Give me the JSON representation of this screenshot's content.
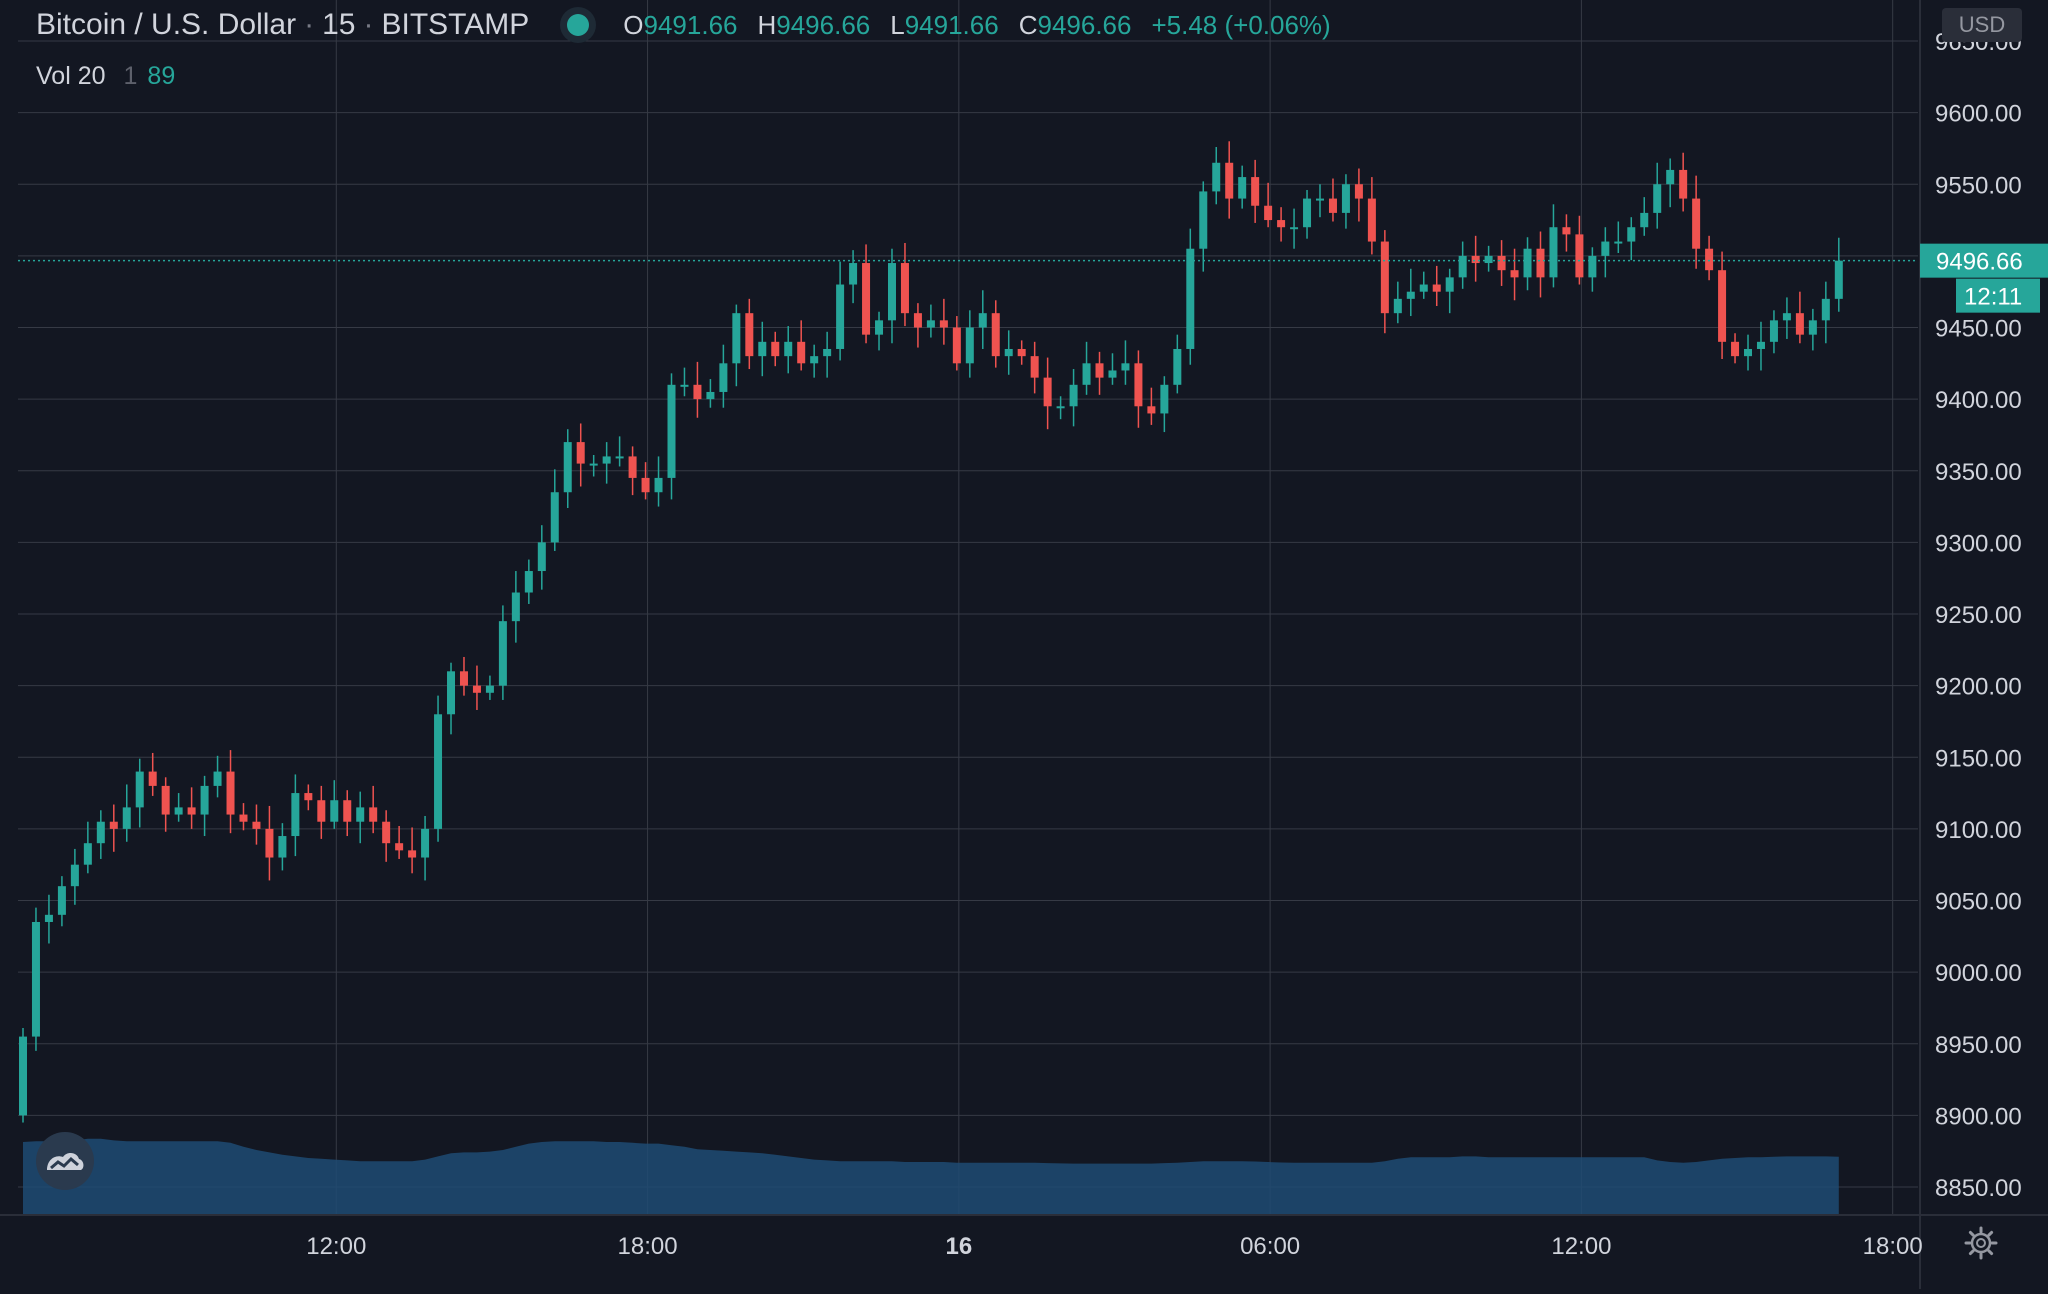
{
  "header": {
    "symbol": "Bitcoin / U.S. Dollar",
    "interval": "15",
    "exchange": "BITSTAMP",
    "ohlc": {
      "o_label": "O",
      "o_value": "9491.66",
      "h_label": "H",
      "h_value": "9496.66",
      "l_label": "L",
      "l_value": "9491.66",
      "c_label": "C",
      "c_value": "9496.66",
      "change": "+5.48 (+0.06%)"
    }
  },
  "volume_legend": {
    "label": "Vol 20",
    "param": "1",
    "value": "89"
  },
  "currency_button": "USD",
  "price_axis": {
    "current_price_label": "9496.66",
    "countdown_label": "12:11"
  },
  "icons": {
    "logo": "tradingview-logo-icon",
    "settings": "gear-icon",
    "status": "market-status-dot-icon"
  },
  "colors": {
    "background": "#131722",
    "up": "#26a69a",
    "down": "#ef5350",
    "grid": "#363a45",
    "volume_ma": "#1e4b73"
  },
  "chart_data": {
    "type": "candlestick",
    "title": "Bitcoin / U.S. Dollar",
    "interval": "15",
    "ylim": [
      8825,
      9660
    ],
    "y_ticks": [
      8850,
      8900,
      8950,
      9000,
      9050,
      9100,
      9150,
      9200,
      9250,
      9300,
      9350,
      9400,
      9450,
      9500,
      9550,
      9600,
      9650
    ],
    "y_tick_labels": [
      "8850.00",
      "8900.00",
      "8950.00",
      "9000.00",
      "9050.00",
      "9100.00",
      "9150.00",
      "9200.00",
      "9250.00",
      "9300.00",
      "9350.00",
      "9400.00",
      "9450.00",
      "9500.00",
      "9550.00",
      "9600.00",
      "9650.00"
    ],
    "x_ticks": [
      {
        "label": "12:00",
        "bar": 25,
        "bold": false
      },
      {
        "label": "18:00",
        "bar": 49,
        "bold": false
      },
      {
        "label": "16",
        "bar": 73,
        "bold": true
      },
      {
        "label": "06:00",
        "bar": 97,
        "bold": false
      },
      {
        "label": "12:00",
        "bar": 121,
        "bold": false
      },
      {
        "label": "18:00",
        "bar": 145,
        "bold": false
      }
    ],
    "grid": true,
    "current_price": 9496.66,
    "bar_count": 141,
    "closes": [
      8955,
      9035,
      9040,
      9060,
      9075,
      9090,
      9105,
      9100,
      9115,
      9140,
      9130,
      9110,
      9115,
      9110,
      9130,
      9140,
      9110,
      9105,
      9100,
      9080,
      9095,
      9125,
      9120,
      9105,
      9120,
      9105,
      9115,
      9105,
      9090,
      9085,
      9080,
      9100,
      9180,
      9210,
      9200,
      9195,
      9200,
      9245,
      9265,
      9280,
      9300,
      9335,
      9370,
      9355,
      9355,
      9360,
      9360,
      9345,
      9335,
      9345,
      9410,
      9410,
      9400,
      9405,
      9425,
      9460,
      9430,
      9440,
      9430,
      9440,
      9425,
      9430,
      9435,
      9480,
      9495,
      9445,
      9455,
      9495,
      9460,
      9450,
      9455,
      9450,
      9425,
      9450,
      9460,
      9430,
      9435,
      9430,
      9415,
      9395,
      9395,
      9410,
      9425,
      9415,
      9420,
      9425,
      9395,
      9390,
      9410,
      9435,
      9505,
      9545,
      9565,
      9540,
      9555,
      9535,
      9525,
      9520,
      9520,
      9540,
      9540,
      9530,
      9550,
      9540,
      9510,
      9460,
      9470,
      9475,
      9480,
      9475,
      9485,
      9500,
      9495,
      9500,
      9490,
      9485,
      9505,
      9485,
      9520,
      9515,
      9485,
      9500,
      9510,
      9510,
      9520,
      9530,
      9550,
      9560,
      9540,
      9505,
      9490,
      9440,
      9430,
      9435,
      9440,
      9455,
      9460,
      9445,
      9455,
      9470,
      9496.66
    ],
    "volume": {
      "indicator": "Vol 20",
      "length": 1,
      "last_value": 89,
      "ma_line": [
        450,
        455,
        455,
        455,
        460,
        470,
        470,
        460,
        455,
        455,
        455,
        455,
        455,
        455,
        455,
        455,
        445,
        420,
        400,
        385,
        370,
        360,
        350,
        345,
        340,
        335,
        330,
        330,
        330,
        330,
        330,
        340,
        360,
        380,
        385,
        385,
        390,
        400,
        420,
        440,
        450,
        455,
        455,
        455,
        455,
        450,
        450,
        445,
        440,
        440,
        430,
        420,
        405,
        400,
        395,
        390,
        385,
        380,
        370,
        360,
        350,
        340,
        335,
        330,
        330,
        330,
        330,
        330,
        325,
        325,
        325,
        325,
        320,
        320,
        320,
        320,
        320,
        320,
        320,
        318,
        316,
        315,
        315,
        315,
        315,
        315,
        315,
        315,
        318,
        320,
        325,
        330,
        330,
        330,
        330,
        328,
        325,
        322,
        320,
        320,
        320,
        320,
        320,
        320,
        320,
        330,
        345,
        355,
        355,
        355,
        355,
        360,
        360,
        355,
        355,
        355,
        355,
        355,
        355,
        355,
        355,
        355,
        355,
        355,
        355,
        355,
        335,
        325,
        320,
        325,
        335,
        345,
        350,
        355,
        355,
        358,
        360,
        360,
        360,
        360,
        358
      ]
    }
  }
}
